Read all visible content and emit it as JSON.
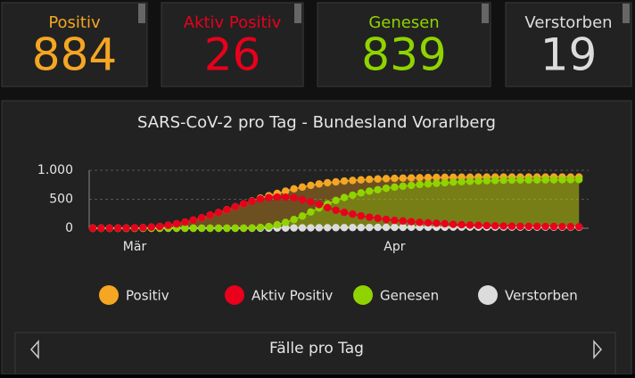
{
  "cards": [
    {
      "label": "Positiv",
      "value": "884",
      "color": "#f5a623"
    },
    {
      "label": "Aktiv Positiv",
      "value": "26",
      "color": "#e8001c"
    },
    {
      "label": "Genesen",
      "value": "839",
      "color": "#8fd400"
    },
    {
      "label": "Verstorben",
      "value": "19",
      "color": "#dcdcdc"
    }
  ],
  "chart_data": {
    "type": "line",
    "title": "SARS-CoV-2 pro Tag - Bundesland Vorarlberg",
    "categories": [
      null,
      null,
      null,
      null,
      null,
      "Mär",
      null,
      null,
      null,
      null,
      null,
      null,
      null,
      null,
      null,
      null,
      null,
      null,
      null,
      null,
      null,
      null,
      null,
      null,
      null,
      null,
      null,
      null,
      null,
      null,
      null,
      null,
      null,
      null,
      null,
      null,
      "Apr",
      null,
      null,
      null,
      null,
      null,
      null,
      null,
      null,
      null,
      null,
      null,
      null,
      null,
      null,
      null,
      null,
      null,
      null,
      null,
      null,
      null,
      null
    ],
    "ylim": [
      0,
      1000
    ],
    "yticks": [
      0,
      500,
      {
        "value": 1000,
        "label": "1.000"
      }
    ],
    "grid": true,
    "legend": "bottom",
    "series": [
      {
        "name": "Positiv",
        "color": "#f5a623",
        "values": [
          0,
          0,
          1,
          2,
          3,
          5,
          10,
          18,
          30,
          50,
          75,
          105,
          140,
          180,
          225,
          270,
          320,
          370,
          420,
          470,
          520,
          560,
          600,
          640,
          680,
          710,
          740,
          765,
          785,
          800,
          815,
          825,
          835,
          843,
          850,
          856,
          861,
          865,
          869,
          872,
          875,
          877,
          879,
          880,
          881,
          882,
          883,
          883,
          884,
          884,
          884,
          884,
          884,
          884,
          884,
          884,
          884,
          884,
          884
        ]
      },
      {
        "name": "Aktiv Positiv",
        "color": "#e8001c",
        "values": [
          0,
          0,
          1,
          2,
          3,
          5,
          10,
          18,
          30,
          50,
          75,
          105,
          140,
          180,
          225,
          270,
          320,
          370,
          420,
          465,
          504,
          528,
          537,
          536,
          525,
          494,
          453,
          407,
          356,
          310,
          274,
          243,
          213,
          190,
          171,
          152,
          136,
          125,
          113,
          101,
          93,
          85,
          77,
          67,
          60,
          54,
          50,
          45,
          41,
          38,
          35,
          33,
          32,
          31,
          30,
          29,
          28,
          27,
          26
        ]
      },
      {
        "name": "Genesen",
        "color": "#8fd400",
        "values": [
          0,
          0,
          0,
          0,
          0,
          0,
          0,
          0,
          0,
          0,
          0,
          0,
          0,
          0,
          0,
          0,
          0,
          0,
          0,
          5,
          15,
          30,
          60,
          100,
          150,
          210,
          280,
          350,
          420,
          480,
          530,
          570,
          610,
          640,
          665,
          690,
          710,
          725,
          740,
          755,
          765,
          775,
          785,
          795,
          803,
          810,
          815,
          820,
          825,
          828,
          830,
          832,
          833,
          834,
          835,
          836,
          837,
          838,
          839
        ]
      },
      {
        "name": "Verstorben",
        "color": "#dcdcdc",
        "values": [
          0,
          0,
          0,
          0,
          0,
          0,
          0,
          0,
          0,
          0,
          0,
          0,
          0,
          0,
          0,
          0,
          0,
          0,
          0,
          0,
          1,
          2,
          3,
          4,
          5,
          6,
          7,
          8,
          9,
          10,
          11,
          12,
          12,
          13,
          14,
          14,
          15,
          15,
          16,
          16,
          17,
          17,
          17,
          18,
          18,
          18,
          18,
          18,
          18,
          18,
          19,
          19,
          19,
          19,
          19,
          19,
          19,
          19,
          19
        ]
      }
    ]
  },
  "footer": {
    "title": "Fälle pro Tag"
  }
}
